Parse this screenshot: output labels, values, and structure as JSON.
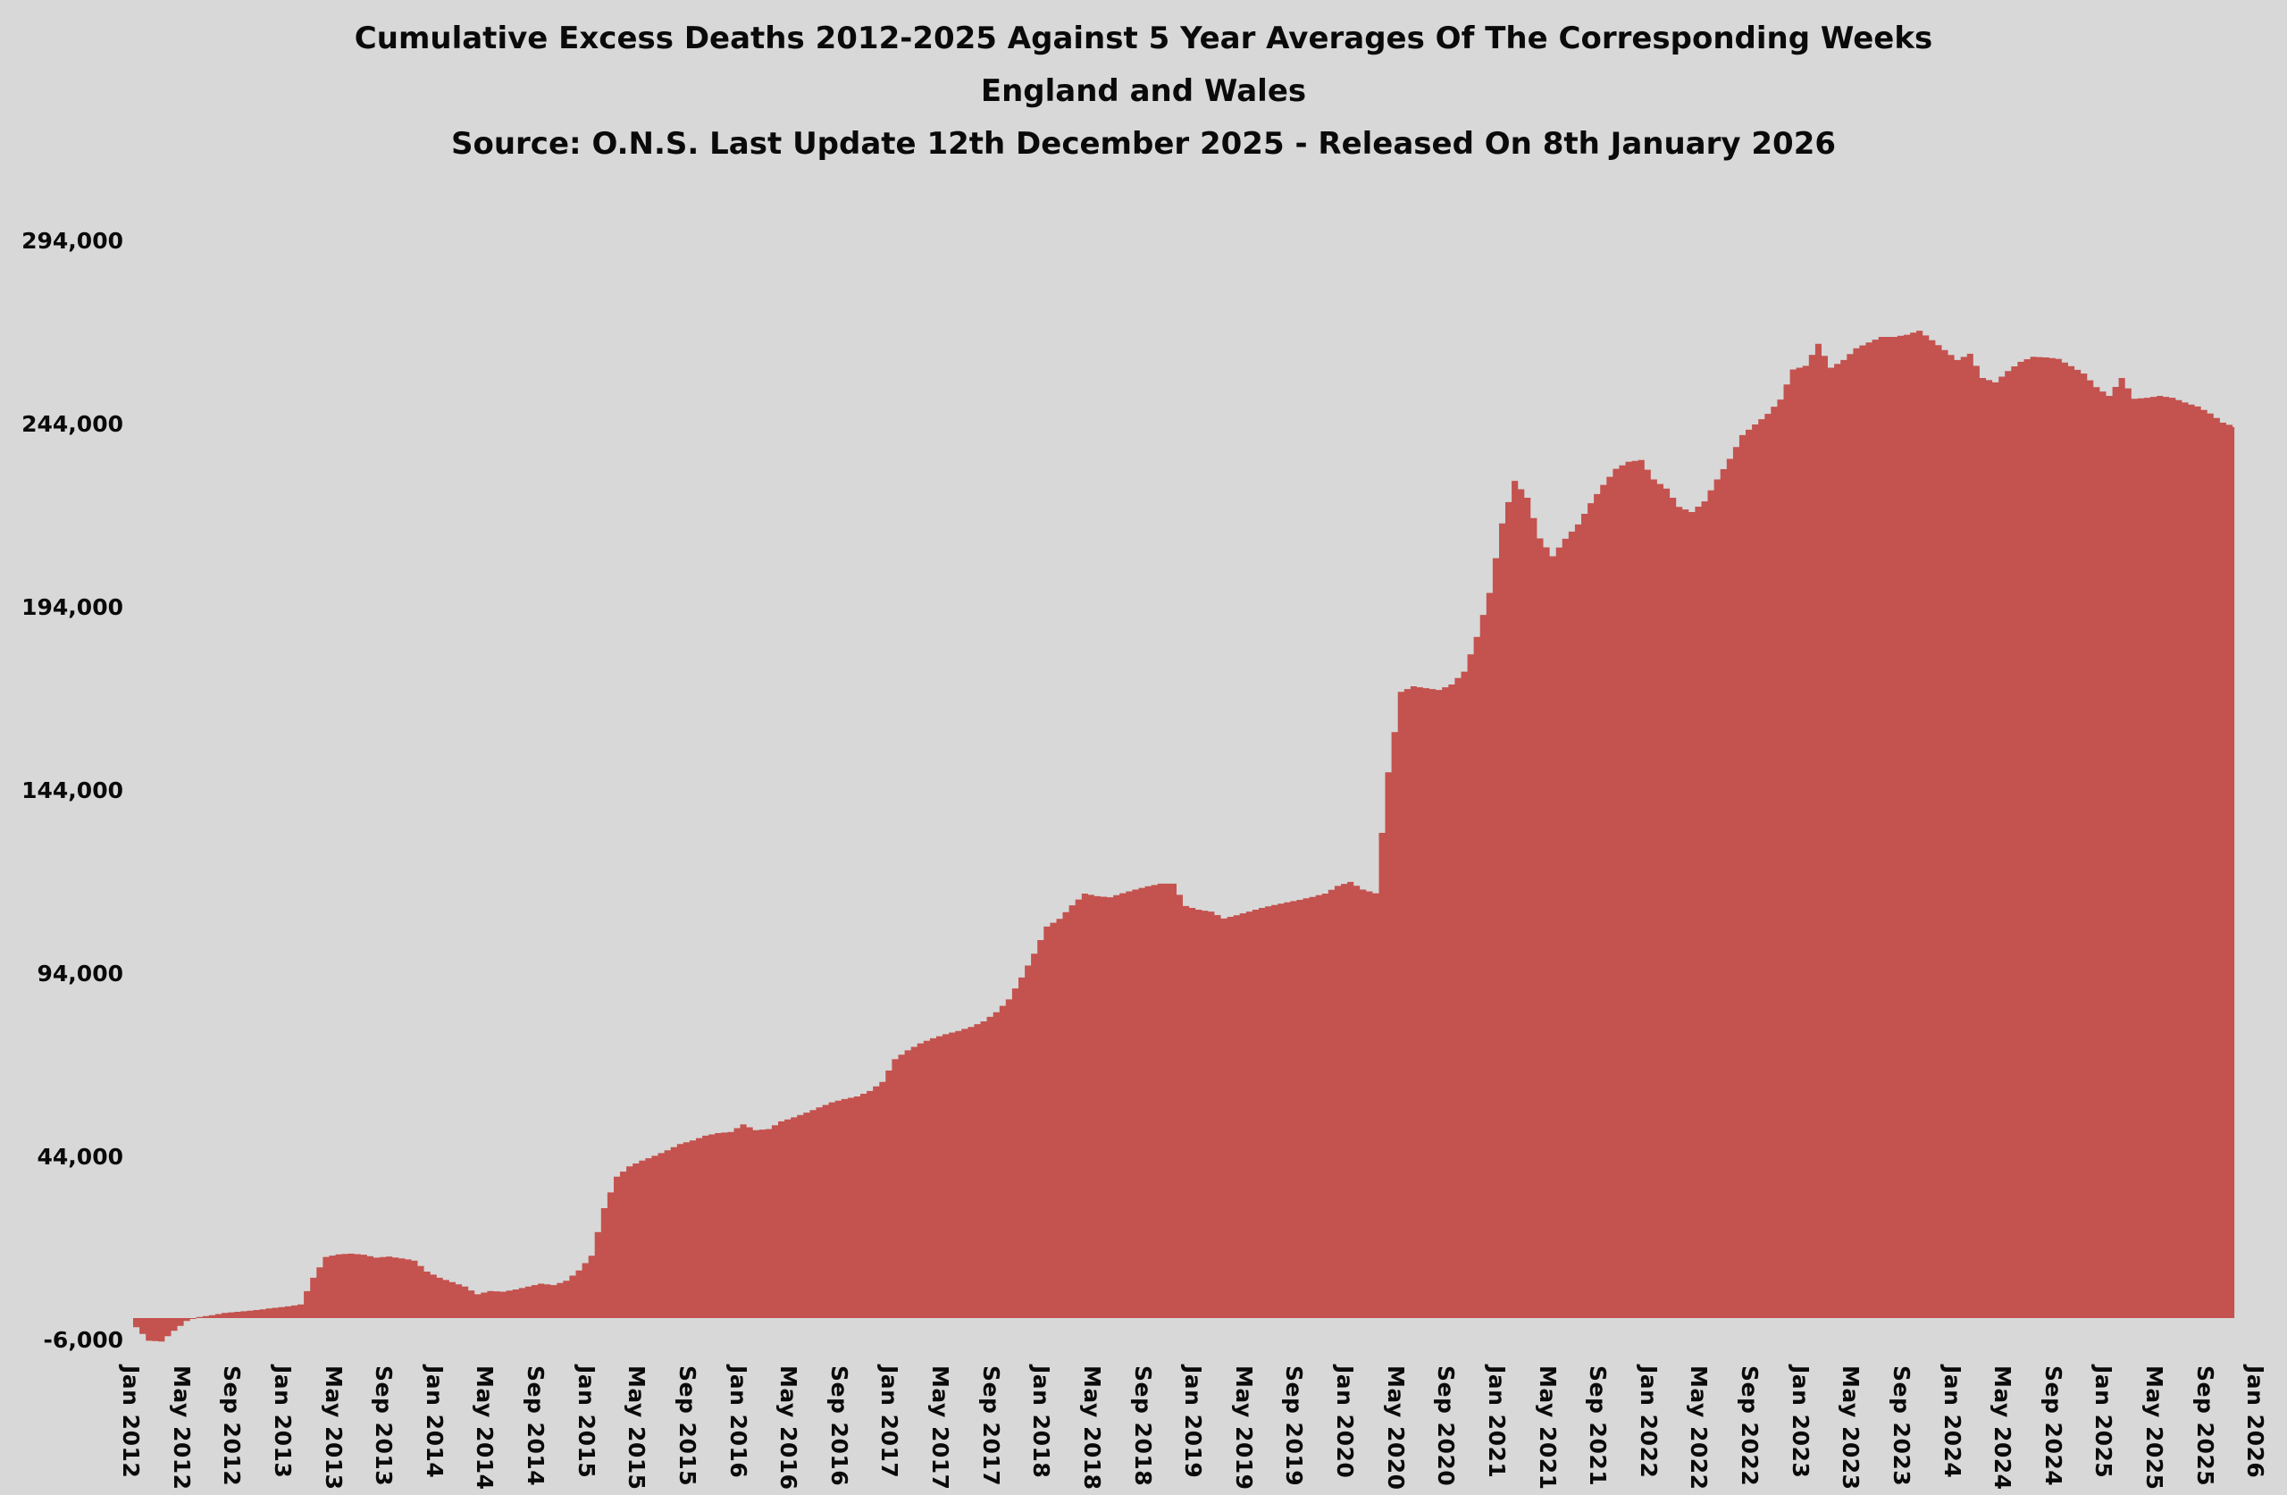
{
  "title": {
    "line1": "Cumulative Excess Deaths 2012-2025 Against 5 Year Averages Of The Corresponding Weeks",
    "line2": "England and Wales",
    "line3": "Source: O.N.S. Last Update 12th December 2025 - Released On 8th January 2026"
  },
  "colors": {
    "background": "#d8d8d8",
    "area_fill": "#c4524e",
    "text": "#0a0a0a"
  },
  "y_axis": {
    "ticks": [
      {
        "label": "294,000",
        "value": 294000
      },
      {
        "label": "244,000",
        "value": 244000
      },
      {
        "label": "194,000",
        "value": 194000
      },
      {
        "label": "144,000",
        "value": 144000
      },
      {
        "label": "94,000",
        "value": 94000
      },
      {
        "label": "44,000",
        "value": 44000
      },
      {
        "label": "-6,000",
        "value": -6000
      }
    ]
  },
  "x_axis": {
    "labels": [
      "Jan 2012",
      "May 2012",
      "Sep 2012",
      "Jan 2013",
      "May 2013",
      "Sep 2013",
      "Jan 2014",
      "May 2014",
      "Sep 2014",
      "Jan 2015",
      "May 2015",
      "Sep 2015",
      "Jan 2016",
      "May 2016",
      "Sep 2016",
      "Jan 2017",
      "May 2017",
      "Sep 2017",
      "Jan 2018",
      "May 2018",
      "Sep 2018",
      "Jan 2019",
      "May 2019",
      "Sep 2019",
      "Jan 2020",
      "May 2020",
      "Sep 2020",
      "Jan 2021",
      "May 2021",
      "Sep 2021",
      "Jan 2022",
      "May 2022",
      "Sep 2022",
      "Jan 2023",
      "May 2023",
      "Sep 2023",
      "Jan 2024",
      "May 2024",
      "Sep 2024",
      "Jan 2025",
      "May 2025",
      "Sep 2025",
      "Jan 2026"
    ],
    "months_per_tick": 4
  },
  "chart_data": {
    "type": "area",
    "title": "Cumulative Excess Deaths 2012-2025 Against 5 Year Averages Of The Corresponding Weeks",
    "region": "England and Wales",
    "source": "O.N.S. Last Update 12th December 2025 - Released On 8th January 2026",
    "x_start": "Jan 2012",
    "x_end_of_data": "Nov 2025",
    "x_axis_end": "Jan 2026",
    "x_resolution": "monthly",
    "ylim": [
      -6000,
      294000
    ],
    "grid": false,
    "legend": "none",
    "step_rendering": true,
    "values": [
      -2500,
      -6200,
      -6400,
      -3500,
      -800,
      300,
      800,
      1400,
      1700,
      2000,
      2400,
      2800,
      3200,
      3700,
      11000,
      16700,
      17400,
      17600,
      17300,
      16500,
      16800,
      16300,
      15700,
      12700,
      11000,
      9800,
      8600,
      6500,
      7400,
      7200,
      7800,
      8600,
      9400,
      9000,
      10200,
      13000,
      17000,
      30000,
      38600,
      41400,
      43000,
      44300,
      45800,
      47500,
      48500,
      49800,
      50500,
      50800,
      52900,
      51300,
      51600,
      53700,
      54800,
      56100,
      57500,
      58900,
      59800,
      60500,
      62000,
      64500,
      70700,
      73100,
      75000,
      76400,
      77500,
      78400,
      79500,
      81000,
      83500,
      87000,
      93000,
      99500,
      106900,
      109000,
      112700,
      115900,
      115200,
      114900,
      116000,
      117000,
      117900,
      118600,
      118600,
      112500,
      111500,
      111000,
      109100,
      110000,
      111000,
      112000,
      112800,
      113500,
      114200,
      115000,
      115900,
      118000,
      119100,
      117000,
      116000,
      149000,
      171000,
      172500,
      172000,
      171500,
      173000,
      176500,
      186000,
      198000,
      217000,
      228600,
      224000,
      212900,
      208000,
      212800,
      216700,
      222500,
      227500,
      231900,
      233800,
      234300,
      229000,
      226500,
      221500,
      220100,
      223000,
      229000,
      234600,
      241100,
      244000,
      246900,
      250800,
      259000,
      260000,
      266000,
      259500,
      261600,
      264800,
      266400,
      267900,
      267900,
      268500,
      269600,
      267000,
      264300,
      261600,
      263300,
      256700,
      255500,
      258600,
      261100,
      262500,
      262300,
      261900,
      259900,
      257900,
      254200,
      251800,
      256700,
      251000,
      251300,
      251800,
      251300,
      250000,
      248900,
      247000,
      244500,
      243300
    ]
  }
}
